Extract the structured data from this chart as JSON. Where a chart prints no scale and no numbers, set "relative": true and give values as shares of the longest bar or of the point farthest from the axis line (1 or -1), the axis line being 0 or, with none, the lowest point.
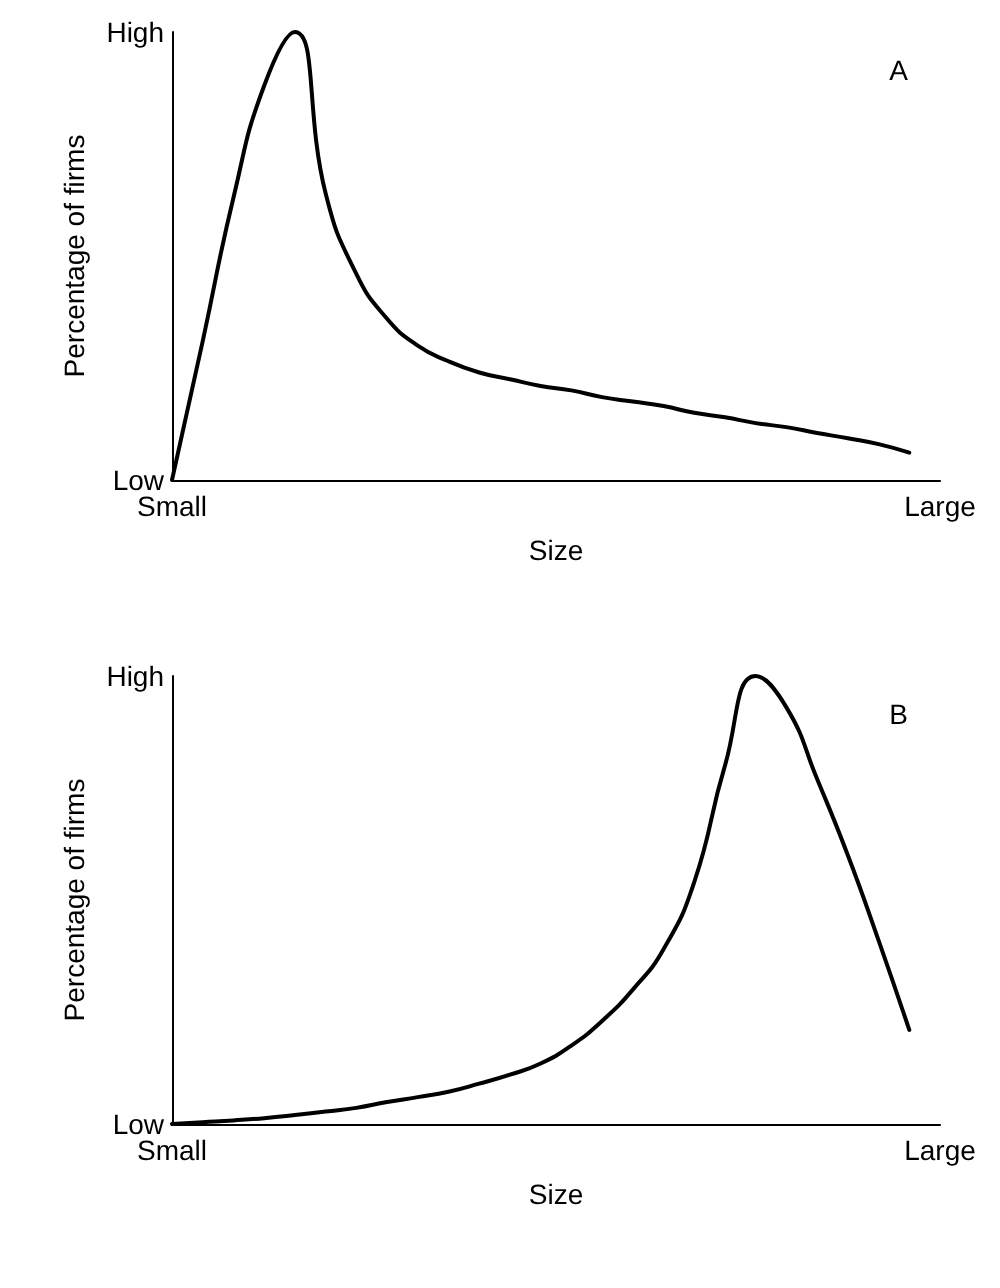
{
  "chart_data": [
    {
      "type": "line",
      "xlabel": "Size",
      "ylabel": "Percentage of firms",
      "relative": true,
      "marker": "none",
      "line_style": "solid",
      "annotations": [
        "A",
        "High",
        "Low"
      ],
      "categories": [
        "Small",
        null,
        null,
        null,
        null,
        null,
        null,
        null,
        null,
        null,
        null,
        null,
        null,
        null,
        null,
        null,
        null,
        null,
        null,
        null,
        null,
        null,
        null,
        null,
        null,
        "Large"
      ],
      "series": [
        {
          "color": "#000000",
          "values": [
            0,
            0.31,
            0.63,
            0.88,
            1.0,
            0.64,
            0.46,
            0.36,
            0.3,
            0.265,
            0.24,
            0.225,
            0.21,
            0.2,
            0.185,
            0.175,
            0.165,
            0.15,
            0.14,
            0.127,
            0.118,
            0.105,
            0.093,
            0.08,
            0.061,
            null
          ]
        }
      ]
    },
    {
      "type": "line",
      "xlabel": "Size",
      "ylabel": "Percentage of firms",
      "relative": true,
      "marker": "none",
      "line_style": "solid",
      "annotations": [
        "B",
        "High",
        "Low"
      ],
      "categories": [
        "Small",
        null,
        null,
        null,
        null,
        null,
        null,
        null,
        null,
        null,
        null,
        null,
        null,
        null,
        null,
        null,
        null,
        null,
        null,
        null,
        null,
        null,
        null,
        null,
        null,
        "Large"
      ],
      "series": [
        {
          "color": "#000000",
          "values": [
            0,
            0.004,
            0.008,
            0.013,
            0.02,
            0.028,
            0.036,
            0.049,
            0.06,
            0.072,
            0.09,
            0.11,
            0.135,
            0.175,
            0.23,
            0.3,
            0.39,
            0.54,
            0.8,
            1.0,
            0.93,
            0.77,
            0.6,
            0.41,
            0.21,
            null
          ]
        }
      ]
    }
  ]
}
